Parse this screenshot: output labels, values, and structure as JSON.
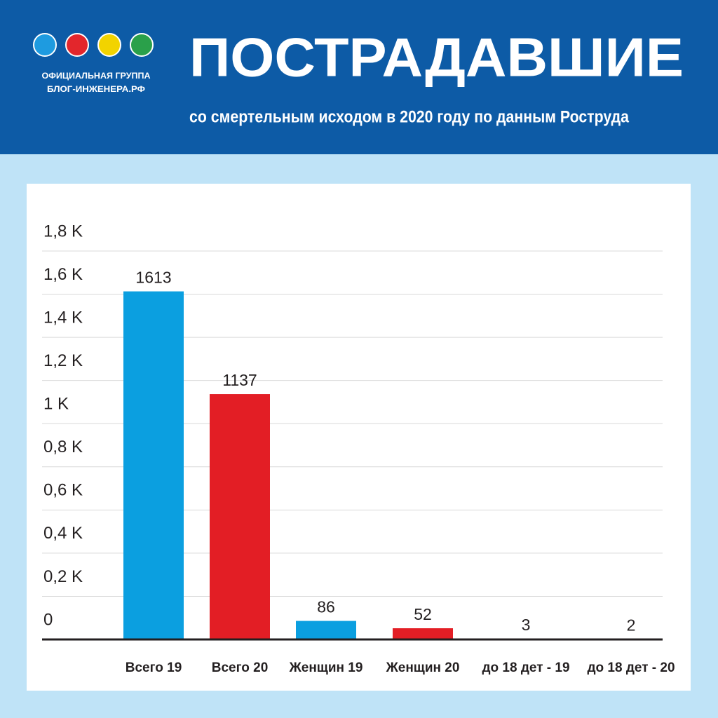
{
  "header": {
    "logo_line1": "ОФИЦИАЛЬНАЯ ГРУППА",
    "logo_line2": "БЛОГ-ИНЖЕНЕРА.РФ"
  },
  "chart_data": {
    "type": "bar",
    "title": "ПОСТРАДАВШИЕ",
    "subtitle": "со смертельным исходом в 2020 году по данным Роструда",
    "categories": [
      "Всего 19",
      "Всего 20",
      "Женщин 19",
      "Женщин 20",
      "до 18 дет - 19",
      "до 18 дет - 20"
    ],
    "values": [
      1613,
      1137,
      86,
      52,
      3,
      2
    ],
    "colors": [
      "#0b9fe0",
      "#e31e25",
      "#0b9fe0",
      "#e31e25",
      "#0b9fe0",
      "#e31e25"
    ],
    "ylim": [
      0,
      1800
    ],
    "yticks": [
      0,
      {
        "value": 200,
        "label": "0,2 K"
      },
      {
        "value": 400,
        "label": "0,4 K"
      },
      {
        "value": 600,
        "label": "0,6 K"
      },
      {
        "value": 800,
        "label": "0,8 K"
      },
      {
        "value": 1000,
        "label": "1 K"
      },
      {
        "value": 1200,
        "label": "1,2 K"
      },
      {
        "value": 1400,
        "label": "1,4 K"
      },
      {
        "value": 1600,
        "label": "1,6 K"
      },
      {
        "value": 1800,
        "label": "1,8 K"
      }
    ],
    "grid": true
  }
}
